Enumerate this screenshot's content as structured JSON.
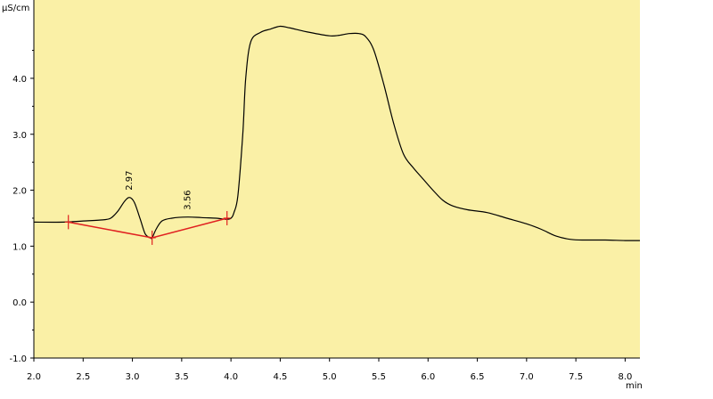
{
  "chart_data": {
    "type": "line",
    "title": "",
    "xlabel": "min",
    "ylabel": "µS/cm",
    "xlim": [
      2.0,
      8.15
    ],
    "ylim": [
      -1.0,
      5.4
    ],
    "x_ticks": [
      2.0,
      2.5,
      3.0,
      3.5,
      4.0,
      4.5,
      5.0,
      5.5,
      6.0,
      6.5,
      7.0,
      7.5,
      8.0
    ],
    "x_tick_labels": [
      "2.0",
      "2.5",
      "3.0",
      "3.5",
      "4.0",
      "4.5",
      "5.0",
      "5.5",
      "6.0",
      "6.5",
      "7.0",
      "7.5",
      "8.0"
    ],
    "y_ticks": [
      -1.0,
      0.0,
      1.0,
      2.0,
      3.0,
      4.0
    ],
    "y_tick_labels": [
      "-1.0",
      "0.0",
      "1.0",
      "2.0",
      "3.0",
      "4.0"
    ],
    "grid": false,
    "colors": {
      "background": "#FAF0A6",
      "trace": "#000000",
      "baseline": "#E02020"
    },
    "series": [
      {
        "x": [
          2.0,
          2.3,
          2.5,
          2.7,
          2.78,
          2.85,
          2.92,
          2.97,
          3.02,
          3.08,
          3.13,
          3.18,
          3.2,
          3.24,
          3.3,
          3.4,
          3.56,
          3.7,
          3.85,
          3.95,
          4.0,
          4.03,
          4.07,
          4.12,
          4.15,
          4.2,
          4.3,
          4.4,
          4.5,
          4.6,
          4.8,
          5.0,
          5.1,
          5.2,
          5.3,
          5.37,
          5.45,
          5.55,
          5.65,
          5.75,
          5.85,
          5.95,
          6.05,
          6.15,
          6.25,
          6.4,
          6.6,
          6.8,
          7.0,
          7.15,
          7.3,
          7.45,
          7.6,
          7.8,
          8.0,
          8.15
        ],
        "y": [
          1.43,
          1.43,
          1.45,
          1.47,
          1.5,
          1.62,
          1.8,
          1.87,
          1.78,
          1.48,
          1.22,
          1.15,
          1.15,
          1.3,
          1.45,
          1.5,
          1.52,
          1.51,
          1.5,
          1.48,
          1.5,
          1.6,
          1.9,
          3.0,
          4.0,
          4.65,
          4.82,
          4.88,
          4.93,
          4.9,
          4.82,
          4.76,
          4.77,
          4.8,
          4.8,
          4.74,
          4.5,
          3.9,
          3.2,
          2.65,
          2.4,
          2.2,
          2.0,
          1.82,
          1.72,
          1.65,
          1.6,
          1.5,
          1.4,
          1.3,
          1.18,
          1.12,
          1.11,
          1.11,
          1.1,
          1.1
        ]
      }
    ],
    "baseline": {
      "x": [
        2.35,
        3.2,
        3.96
      ],
      "y": [
        1.43,
        1.15,
        1.5
      ]
    },
    "peak_labels": [
      {
        "text": "2.97",
        "x": 2.97,
        "y": 1.87
      },
      {
        "text": "3.56",
        "x": 3.56,
        "y": 1.52
      }
    ]
  }
}
